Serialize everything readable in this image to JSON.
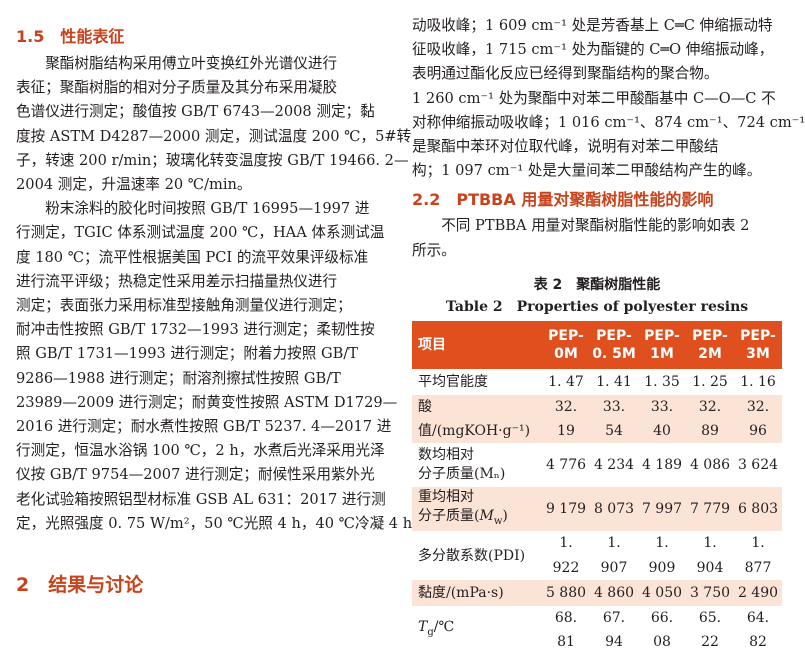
{
  "left": {
    "heading_15": "1.5　性能表征",
    "p1": [
      "聚酯树脂结构采用傅立叶变换红外光谱仪进行",
      "表征；聚酯树脂的相对分子质量及其分布采用凝胶",
      "色谱仪进行测定；酸值按 GB/T 6743—2008 测定；黏",
      "度按 ASTM D4287—2000 测定，测试温度 200 ℃，5#转",
      "子，转速 200 r/min；玻璃化转变温度按 GB/T 19466. 2—",
      "2004 测定，升温速率 20 ℃/min。"
    ],
    "p2": [
      "粉末涂料的胶化时间按照 GB/T 16995—1997 进",
      "行测定，TGIC 体系测试温度 200 ℃，HAA 体系测试温",
      "度 180 ℃；流平性根据美国 PCI 的流平效果评级标准",
      "进行流平评级；热稳定性采用差示扫描量热仪进行",
      "测定；表面张力采用标准型接触角测量仪进行测定；",
      "耐冲击性按照 GB/T 1732—1993 进行测定；柔韧性按",
      "照 GB/T 1731—1993 进行测定；附着力按照 GB/T",
      "9286—1988 进行测定；耐溶剂擦拭性按照 GB/T",
      "23989—2009 进行测定；耐黄变性按照 ASTM D1729—",
      "2016 进行测定；耐水煮性按照 GB/T 5237. 4—2017 进",
      "行测定，恒温水浴锅 100 ℃，2 h，水煮后光泽采用光泽",
      "仪按 GB/T 9754—2007 进行测定；耐候性采用紫外光",
      "老化试验箱按照铝型材标准 GSB AL 631：2017 进行测",
      "定，光照强度 0. 75 W/m²，50 ℃光照 4 h，40 ℃冷凝 4 h。"
    ],
    "heading_2": "2　结果与讨论"
  },
  "right": {
    "p1": [
      "动吸收峰；1 609 cm⁻¹ 处是芳香基上 C═C 伸缩振动特",
      "征吸收峰，1 715 cm⁻¹ 处为酯键的 C═O 伸缩振动峰，",
      "表明通过酯化反应已经得到聚酯结构的聚合物。",
      "1 260 cm⁻¹ 处为聚酯中对苯二甲酸酯基中 C—O—C 不",
      "对称伸缩振动吸收峰；1 016 cm⁻¹、874 cm⁻¹、724 cm⁻¹",
      "是聚酯中苯环对位取代峰，说明有对苯二甲酸结",
      "构；1 097 cm⁻¹ 处是大量间苯二甲酸结构产生的峰。"
    ],
    "heading_22": "2.2　PTBBA 用量对聚酯树脂性能的影响",
    "p2": [
      "不同 PTBBA 用量对聚酯树脂性能的影响如表 2",
      "所示。"
    ],
    "table_caption_cn": "表 2　聚酯树脂性能",
    "table_caption_en": "Table 2　Properties of polyester resins",
    "table": {
      "header_label": "项目",
      "columns": [
        [
          "PEP-",
          "0M"
        ],
        [
          "PEP-",
          "0. 5M"
        ],
        [
          "PEP-",
          "1M"
        ],
        [
          "PEP-",
          "2M"
        ],
        [
          "PEP-",
          "3M"
        ]
      ],
      "rows": [
        {
          "label": [
            "平均官能度"
          ],
          "values": [
            "1. 47",
            "1. 41",
            "1. 35",
            "1. 25",
            "1. 16"
          ]
        },
        {
          "label": [
            "酸值/(mgKOH·g⁻¹)"
          ],
          "values": [
            "32. 19",
            "33. 54",
            "33. 40",
            "32. 89",
            "32. 96"
          ]
        },
        {
          "label": [
            "数均相对",
            "分子质量(Mₙ)"
          ],
          "values": [
            "4 776",
            "4 234",
            "4 189",
            "4 086",
            "3 624"
          ]
        },
        {
          "label": [
            "重均相对",
            "分子质量(M_w)"
          ],
          "values": [
            "9 179",
            "8 073",
            "7 997",
            "7 779",
            "6 803"
          ]
        },
        {
          "label": [
            "多分散系数(PDI)"
          ],
          "values": [
            "1. 922",
            "1. 907",
            "1. 909",
            "1. 904",
            "1. 877"
          ]
        },
        {
          "label": [
            "黏度/(mPa·s)"
          ],
          "values": [
            "5 880",
            "4 860",
            "4 050",
            "3 750",
            "2 490"
          ]
        },
        {
          "label": [
            "T_g/℃"
          ],
          "values": [
            "68. 81",
            "67. 94",
            "66. 08",
            "65. 22",
            "64. 82"
          ]
        }
      ]
    }
  },
  "colors": {
    "accent": "#c8421b",
    "table_header": "#e0501e",
    "row_tint": "#fbe3d6"
  }
}
